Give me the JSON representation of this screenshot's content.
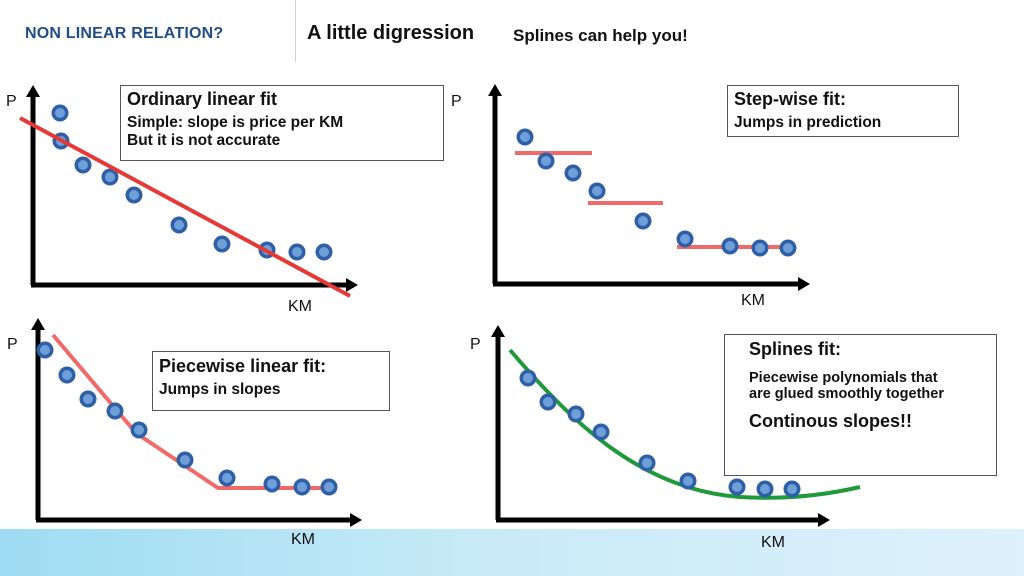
{
  "header": {
    "section": "NON LINEAR RELATION?",
    "title": "A little digression",
    "subtitle": "Splines can help you!"
  },
  "colors": {
    "section": "#1f4e86",
    "dot_outer": "#2f5fa4",
    "dot_inner": "#6f9fd8",
    "linear_fit": "#e53935",
    "step_fit": "#f06a6a",
    "spline_fit": "#1e9a3a"
  },
  "panels": [
    {
      "id": "linear",
      "y_label": "P",
      "x_label": "KM",
      "title": "Ordinary  linear fit",
      "lines": [
        "Simple: slope is price per KM",
        "But it is not accurate"
      ]
    },
    {
      "id": "step",
      "y_label": "P",
      "x_label": "KM",
      "title": "Step-wise fit:",
      "lines": [
        "Jumps in prediction"
      ]
    },
    {
      "id": "piecewise",
      "y_label": "P",
      "x_label": "KM",
      "title": "Piecewise linear fit:",
      "lines": [
        "Jumps in slopes"
      ]
    },
    {
      "id": "splines",
      "y_label": "P",
      "x_label": "KM",
      "title": "Splines fit:",
      "lines": [
        "Piecewise polynomials that",
        "are glued smoothly together"
      ],
      "emphasis": "Continous slopes!!"
    }
  ]
}
